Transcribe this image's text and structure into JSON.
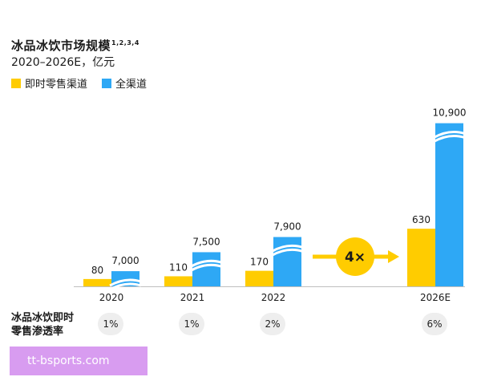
{
  "chart_data": {
    "type": "bar",
    "title": "冰品冰饮市场规模",
    "title_superscript": "1,2,3,4",
    "subtitle": "2020–2026E，亿元",
    "categories": [
      "2020",
      "2021",
      "2022",
      "2026E"
    ],
    "series": [
      {
        "name": "即时零售渠道",
        "color": "#FFCC00",
        "values": [
          80,
          110,
          170,
          630
        ]
      },
      {
        "name": "全渠道",
        "color": "#2EA8F5",
        "values": [
          7000,
          7500,
          7900,
          10900
        ]
      }
    ],
    "value_labels": {
      "即时零售渠道": [
        "80",
        "110",
        "170",
        "630"
      ],
      "全渠道": [
        "7,000",
        "7,500",
        "7,900",
        "10,900"
      ]
    },
    "axis_breaks": true,
    "annotation": {
      "text": "4×",
      "between": [
        "2022",
        "2026E"
      ]
    },
    "penetration": {
      "label_lines": [
        "冰品冰饮即时",
        "零售渗透率"
      ],
      "values": [
        "1%",
        "1%",
        "2%",
        "6%"
      ]
    },
    "legend_position": "top-left",
    "grid": false
  },
  "watermark": "tt-bsports.com"
}
